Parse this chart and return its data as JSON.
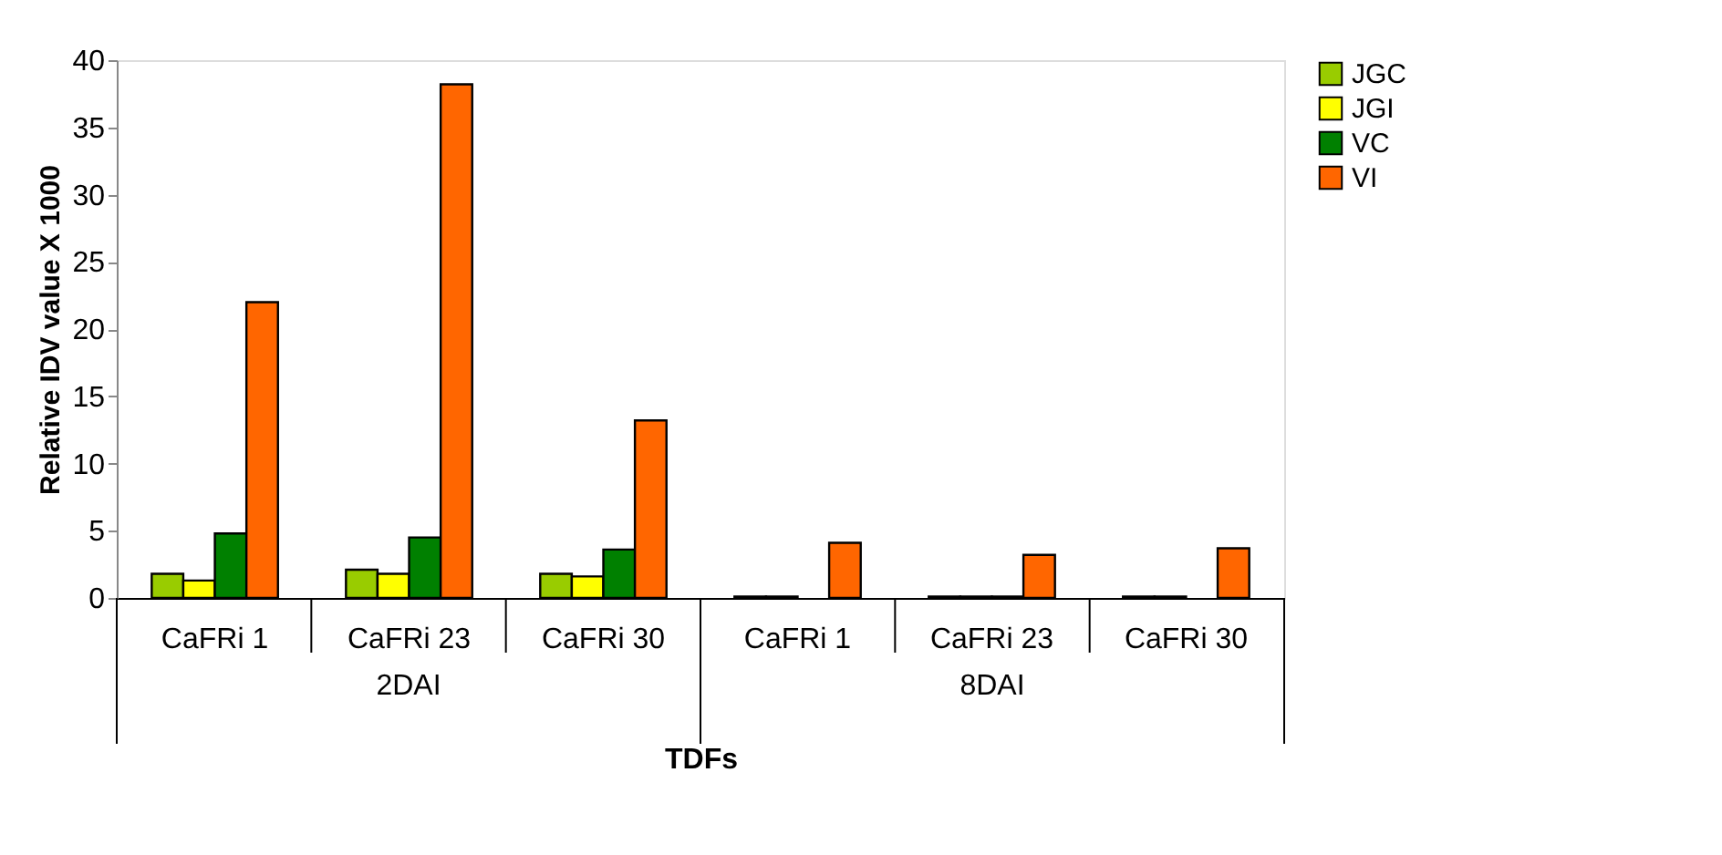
{
  "chart_data": {
    "type": "bar",
    "xlabel": "TDFs",
    "ylabel": "Relative IDV value X 1000",
    "categories": [
      "CaFRi 1",
      "CaFRi 23",
      "CaFRi 30",
      "CaFRi 1",
      "CaFRi 23",
      "CaFRi 30"
    ],
    "annotations": [
      "2DAI",
      "8DAI"
    ],
    "series": [
      {
        "name": "JGC",
        "color": "#99cc00",
        "values": [
          1.8,
          2.1,
          1.8,
          0.1,
          0.1,
          0.1
        ]
      },
      {
        "name": "JGI",
        "color": "#ffff00",
        "values": [
          1.3,
          1.8,
          1.6,
          0.1,
          0.1,
          0.1
        ]
      },
      {
        "name": "VC",
        "color": "#008000",
        "values": [
          4.8,
          4.5,
          3.6,
          null,
          0.1,
          null
        ]
      },
      {
        "name": "VI",
        "color": "#ff6600",
        "values": [
          22,
          38.2,
          13.2,
          4.1,
          3.2,
          3.7
        ]
      }
    ],
    "ylim": [
      0,
      40
    ],
    "yticks": [
      0,
      5,
      10,
      15,
      20,
      25,
      30,
      35,
      40
    ],
    "grid": false,
    "legend": "right"
  }
}
